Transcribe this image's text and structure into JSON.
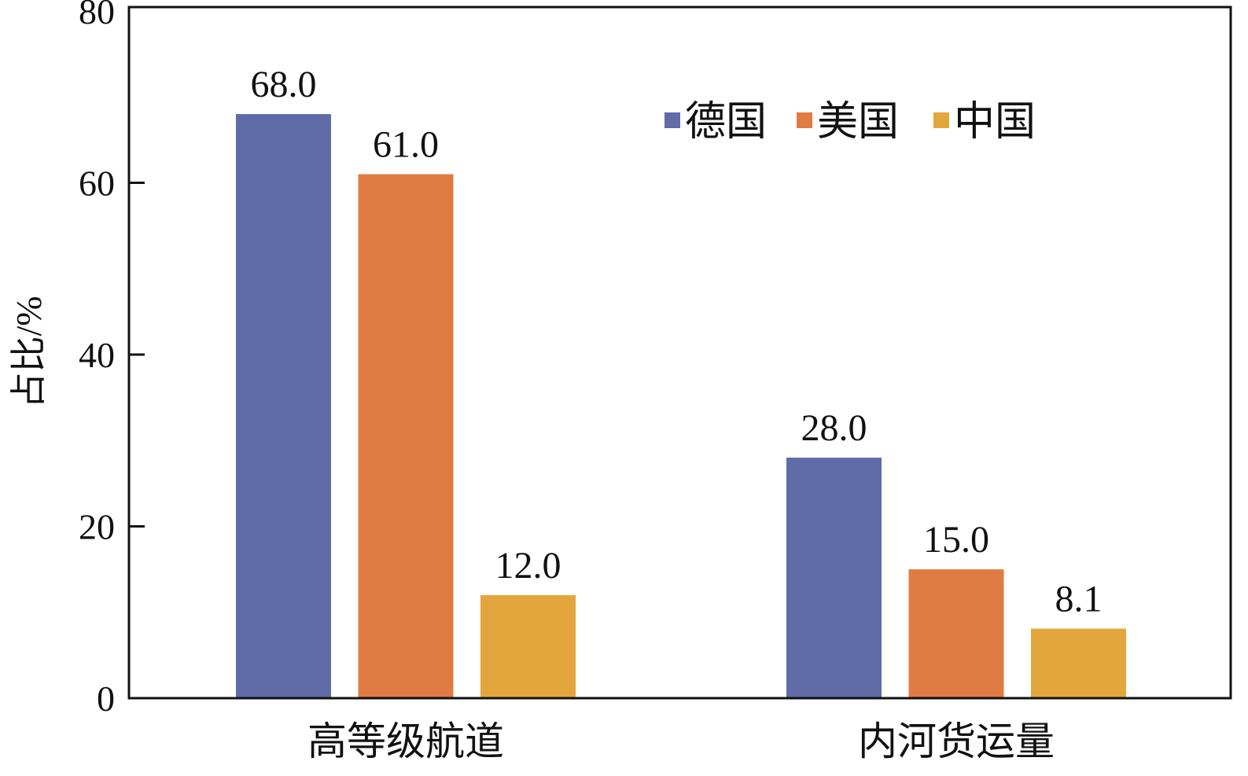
{
  "chart_data": {
    "type": "bar",
    "title": "",
    "xlabel": "",
    "ylabel": "占比/%",
    "ylim": [
      0,
      80
    ],
    "yticks": [
      0,
      20,
      40,
      60,
      80
    ],
    "categories": [
      "高等级航道",
      "内河货运量"
    ],
    "series": [
      {
        "name": "德国",
        "color": "#5f6ca8",
        "values": [
          68.0,
          28.0
        ],
        "labels": [
          "68.0",
          "28.0"
        ]
      },
      {
        "name": "美国",
        "color": "#e07b43",
        "values": [
          61.0,
          15.0
        ],
        "labels": [
          "61.0",
          "15.0"
        ]
      },
      {
        "name": "中国",
        "color": "#e3a63c",
        "values": [
          12.0,
          8.1
        ],
        "labels": [
          "12.0",
          "8.1"
        ]
      }
    ],
    "legend_position": "top-right",
    "grid": false
  }
}
